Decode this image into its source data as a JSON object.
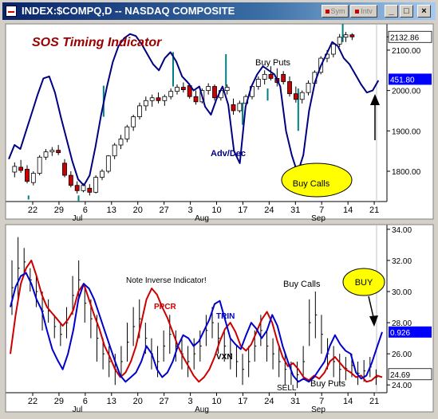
{
  "window": {
    "title": "INDEX:$COMPQ,D -- NASDAQ COMPOSITE",
    "tag_buttons": [
      "Sym",
      "Intv"
    ],
    "window_buttons": [
      "_",
      "□",
      "×"
    ]
  },
  "colors": {
    "plot_bg": "#ffffff",
    "price_bar": "#000000",
    "candle_up": "#ffffff",
    "candle_down": "#cc0000",
    "adv_dec": "#000080",
    "cycle_marker": "#008080",
    "trin": "#0000cc",
    "pcr": "#cc0000",
    "vxn_bar": "#000000",
    "callout": "#ffff00",
    "title_text": "#990000",
    "axis_label_blue": "#0000ff",
    "axis_label_black": "#000000"
  },
  "chart_data": [
    {
      "type": "candlestick",
      "panel": "upper",
      "title": "SOS Timing Indicator",
      "y_ticks": [
        1800,
        1900,
        2000,
        2100
      ],
      "y_range": [
        1725,
        2165
      ],
      "x_date_labels": [
        "22",
        "29",
        "6",
        "13",
        "20",
        "27",
        "3",
        "10",
        "17",
        "24",
        "31",
        "7",
        "14",
        "21"
      ],
      "x_month_labels": [
        "Jul",
        "Aug",
        "Sep"
      ],
      "current_price_label": "2132.86",
      "current_price": 2132.86,
      "adv_dec_current_label": "451.80",
      "adv_dec_current_y": 2028,
      "ohlc": [
        {
          "o": 1798,
          "h": 1822,
          "l": 1785,
          "c": 1812
        },
        {
          "o": 1810,
          "h": 1828,
          "l": 1796,
          "c": 1802
        },
        {
          "o": 1805,
          "h": 1815,
          "l": 1770,
          "c": 1775
        },
        {
          "o": 1772,
          "h": 1800,
          "l": 1765,
          "c": 1795
        },
        {
          "o": 1795,
          "h": 1840,
          "l": 1790,
          "c": 1835
        },
        {
          "o": 1835,
          "h": 1855,
          "l": 1828,
          "c": 1848
        },
        {
          "o": 1848,
          "h": 1860,
          "l": 1838,
          "c": 1852
        },
        {
          "o": 1852,
          "h": 1865,
          "l": 1840,
          "c": 1846
        },
        {
          "o": 1820,
          "h": 1830,
          "l": 1785,
          "c": 1790
        },
        {
          "o": 1790,
          "h": 1800,
          "l": 1760,
          "c": 1765
        },
        {
          "o": 1765,
          "h": 1775,
          "l": 1745,
          "c": 1752
        },
        {
          "o": 1752,
          "h": 1770,
          "l": 1748,
          "c": 1765
        },
        {
          "o": 1758,
          "h": 1768,
          "l": 1740,
          "c": 1748
        },
        {
          "o": 1748,
          "h": 1790,
          "l": 1745,
          "c": 1785
        },
        {
          "o": 1785,
          "h": 1805,
          "l": 1778,
          "c": 1800
        },
        {
          "o": 1800,
          "h": 1840,
          "l": 1795,
          "c": 1838
        },
        {
          "o": 1838,
          "h": 1870,
          "l": 1830,
          "c": 1865
        },
        {
          "o": 1865,
          "h": 1890,
          "l": 1855,
          "c": 1880
        },
        {
          "o": 1880,
          "h": 1915,
          "l": 1872,
          "c": 1910
        },
        {
          "o": 1910,
          "h": 1940,
          "l": 1900,
          "c": 1935
        },
        {
          "o": 1935,
          "h": 1970,
          "l": 1928,
          "c": 1962
        },
        {
          "o": 1962,
          "h": 1985,
          "l": 1950,
          "c": 1975
        },
        {
          "o": 1975,
          "h": 1990,
          "l": 1960,
          "c": 1982
        },
        {
          "o": 1982,
          "h": 1995,
          "l": 1968,
          "c": 1975
        },
        {
          "o": 1975,
          "h": 1990,
          "l": 1962,
          "c": 1985
        },
        {
          "o": 1985,
          "h": 2005,
          "l": 1978,
          "c": 1998
        },
        {
          "o": 1998,
          "h": 2015,
          "l": 1990,
          "c": 2008
        },
        {
          "o": 2008,
          "h": 2020,
          "l": 1995,
          "c": 2002
        },
        {
          "o": 2012,
          "h": 2018,
          "l": 1980,
          "c": 1985
        },
        {
          "o": 1985,
          "h": 2000,
          "l": 1965,
          "c": 1972
        },
        {
          "o": 1972,
          "h": 2005,
          "l": 1968,
          "c": 2000
        },
        {
          "o": 2000,
          "h": 2018,
          "l": 1990,
          "c": 2010
        },
        {
          "o": 2010,
          "h": 2015,
          "l": 1975,
          "c": 1982
        },
        {
          "o": 1982,
          "h": 2005,
          "l": 1975,
          "c": 2000
        },
        {
          "o": 2000,
          "h": 2015,
          "l": 1990,
          "c": 2008
        },
        {
          "o": 1965,
          "h": 1980,
          "l": 1940,
          "c": 1950
        },
        {
          "o": 1950,
          "h": 1975,
          "l": 1945,
          "c": 1968
        },
        {
          "o": 1968,
          "h": 1990,
          "l": 1960,
          "c": 1985
        },
        {
          "o": 1985,
          "h": 2015,
          "l": 1978,
          "c": 2010
        },
        {
          "o": 2010,
          "h": 2035,
          "l": 2002,
          "c": 2028
        },
        {
          "o": 2028,
          "h": 2050,
          "l": 2015,
          "c": 2040
        },
        {
          "o": 2040,
          "h": 2060,
          "l": 2025,
          "c": 2030
        },
        {
          "o": 2030,
          "h": 2055,
          "l": 2010,
          "c": 2020
        },
        {
          "o": 2040,
          "h": 2048,
          "l": 2015,
          "c": 2022
        },
        {
          "o": 2022,
          "h": 2035,
          "l": 1985,
          "c": 1992
        },
        {
          "o": 1992,
          "h": 2010,
          "l": 1970,
          "c": 1978
        },
        {
          "o": 1978,
          "h": 2000,
          "l": 1968,
          "c": 1995
        },
        {
          "o": 1995,
          "h": 2025,
          "l": 1988,
          "c": 2018
        },
        {
          "o": 2018,
          "h": 2050,
          "l": 2012,
          "c": 2045
        },
        {
          "o": 2045,
          "h": 2085,
          "l": 2040,
          "c": 2080
        },
        {
          "o": 2080,
          "h": 2100,
          "l": 2070,
          "c": 2090
        },
        {
          "o": 2090,
          "h": 2120,
          "l": 2082,
          "c": 2115
        },
        {
          "o": 2115,
          "h": 2140,
          "l": 2108,
          "c": 2132
        },
        {
          "o": 2132,
          "h": 2145,
          "l": 2120,
          "c": 2138
        },
        {
          "o": 2138,
          "h": 2142,
          "l": 2125,
          "c": 2132.86
        }
      ],
      "adv_dec_series": [
        1830,
        1865,
        1855,
        1900,
        1945,
        1990,
        2030,
        2035,
        1995,
        1935,
        1880,
        1825,
        1780,
        1765,
        1790,
        1860,
        1940,
        2010,
        2070,
        2110,
        2130,
        2140,
        2135,
        2115,
        2090,
        2065,
        2050,
        2080,
        2095,
        2072,
        2035,
        2020,
        2000,
        2010,
        1960,
        1940,
        1980,
        2010,
        1965,
        1850,
        1820,
        1960,
        2010,
        2040,
        2060,
        2050,
        2040,
        2010,
        1900,
        1840,
        1795,
        1840,
        1950,
        2020,
        2060,
        2090,
        2120,
        2110,
        2080,
        2065,
        2040,
        2015,
        1995,
        2000,
        2025
      ],
      "cycle_markers": [
        {
          "i": 2.5,
          "from": 1740,
          "to": 1730
        },
        {
          "i": 11.5,
          "from": 1740,
          "to": 1725
        },
        {
          "i": 16,
          "from": 1935,
          "to": 2012
        },
        {
          "i": 28.5,
          "from": 2010,
          "to": 2095
        },
        {
          "i": 38,
          "from": 2010,
          "to": 2090
        },
        {
          "i": 41,
          "from": 1915,
          "to": 1970
        },
        {
          "i": 45.5,
          "from": 1975,
          "to": 2005
        },
        {
          "i": 51,
          "from": 1900,
          "to": 2005
        },
        {
          "i": 59,
          "from": 2120,
          "to": 2165
        }
      ],
      "annotations": [
        {
          "text": "Buy Puts",
          "x": 42,
          "y": 2080
        },
        {
          "text": "Adv/Dec",
          "x": 34,
          "y": 1832
        },
        {
          "text": "Buy Calls",
          "x": 47,
          "y": 1755,
          "callout": true
        },
        {
          "text": "",
          "x": 59,
          "y": 1905,
          "arrow_to": 2000
        }
      ]
    },
    {
      "type": "line",
      "panel": "lower",
      "y_ticks": [
        24,
        26,
        28,
        30,
        32,
        34
      ],
      "y_range": [
        23.5,
        34.3
      ],
      "x_date_labels": [
        "22",
        "29",
        "6",
        "13",
        "20",
        "27",
        "3",
        "10",
        "17",
        "24",
        "31",
        "7",
        "14",
        "21"
      ],
      "x_month_labels": [
        "Jul",
        "Aug",
        "Sep"
      ],
      "current_trin_label": "0.926",
      "current_trin_y": 27.4,
      "current_vxn_label": "24.69",
      "current_vxn": 24.69,
      "series": [
        {
          "name": "TRIN",
          "values": [
            29.0,
            30.3,
            31.0,
            31.2,
            30.5,
            29.5,
            28.8,
            27.5,
            26.3,
            25.6,
            25.0,
            26.0,
            27.5,
            29.5,
            30.5,
            30.2,
            29.5,
            28.5,
            27.5,
            26.5,
            25.5,
            24.6,
            24.2,
            24.5,
            24.8,
            25.5,
            26.5,
            26.0,
            25.0,
            24.5,
            24.8,
            25.5,
            26.5,
            27.2,
            27.0,
            26.5,
            26.8,
            27.5,
            28.2,
            29.2,
            29.4,
            28.2,
            27.0,
            26.6,
            26.3,
            27.2,
            28.0,
            27.6,
            27.0,
            27.5,
            28.5,
            27.8,
            26.5,
            25.5,
            24.6,
            24.2,
            24.4,
            24.2,
            24.5,
            25.0,
            25.5,
            26.5,
            27.2,
            26.6,
            26.2,
            26.0,
            24.8,
            24.4,
            24.6,
            25.4,
            26.4,
            27.4
          ]
        },
        {
          "name": "PCR",
          "values": [
            26.0,
            28.5,
            30.5,
            31.5,
            32.0,
            31.0,
            29.8,
            29.0,
            28.6,
            28.2,
            27.8,
            28.2,
            28.8,
            30.0,
            30.5,
            29.5,
            28.5,
            27.6,
            26.5,
            25.8,
            25.0,
            24.5,
            24.8,
            25.5,
            26.5,
            28.0,
            29.5,
            30.2,
            29.8,
            29.0,
            28.3,
            27.4,
            26.5,
            25.8,
            25.2,
            24.6,
            24.2,
            24.5,
            25.0,
            25.8,
            26.8,
            27.6,
            28.0,
            27.4,
            26.5,
            26.2,
            26.6,
            27.4,
            28.2,
            28.7,
            28.0,
            26.8,
            25.8,
            25.2,
            25.4,
            25.0,
            24.5,
            24.3,
            24.6,
            24.4,
            24.8,
            25.5,
            25.8,
            25.4,
            25.0,
            24.8,
            24.5,
            24.6,
            24.2,
            24.3,
            24.6,
            24.5
          ]
        },
        {
          "name": "VXN",
          "bars": [
            [
              28.5,
              32.0
            ],
            [
              29.5,
              33.5
            ],
            [
              31.0,
              32.8
            ],
            [
              30.0,
              31.5
            ],
            [
              29.0,
              31.0
            ],
            [
              27.5,
              30.0
            ],
            [
              28.0,
              29.5
            ],
            [
              27.0,
              28.5
            ],
            [
              26.5,
              28.0
            ],
            [
              27.0,
              29.0
            ],
            [
              28.5,
              31.0
            ],
            [
              29.5,
              32.0
            ],
            [
              28.0,
              30.5
            ],
            [
              27.0,
              29.5
            ],
            [
              25.5,
              28.5
            ],
            [
              25.0,
              27.0
            ],
            [
              24.5,
              26.5
            ],
            [
              24.0,
              26.0
            ],
            [
              24.5,
              26.5
            ],
            [
              25.5,
              28.0
            ],
            [
              26.5,
              29.0
            ],
            [
              27.0,
              29.5
            ],
            [
              26.0,
              28.0
            ],
            [
              25.0,
              27.0
            ],
            [
              24.5,
              26.5
            ],
            [
              25.5,
              27.5
            ],
            [
              26.0,
              28.5
            ],
            [
              25.5,
              27.5
            ],
            [
              25.0,
              27.0
            ],
            [
              24.5,
              26.5
            ],
            [
              25.0,
              27.0
            ],
            [
              25.5,
              27.5
            ],
            [
              26.5,
              28.5
            ],
            [
              27.0,
              29.0
            ],
            [
              26.0,
              28.0
            ],
            [
              25.5,
              27.5
            ],
            [
              25.0,
              27.0
            ],
            [
              24.5,
              26.5
            ],
            [
              24.0,
              26.0
            ],
            [
              24.5,
              26.5
            ],
            [
              25.5,
              27.5
            ],
            [
              26.5,
              28.5
            ],
            [
              25.5,
              27.5
            ],
            [
              25.0,
              27.0
            ],
            [
              24.5,
              26.5
            ],
            [
              24.0,
              26.0
            ],
            [
              24.0,
              25.5
            ],
            [
              23.8,
              25.5
            ],
            [
              24.5,
              26.5
            ],
            [
              26.5,
              29.5
            ],
            [
              27.0,
              30.0
            ],
            [
              26.0,
              28.5
            ],
            [
              25.0,
              27.0
            ],
            [
              24.5,
              26.5
            ],
            [
              24.0,
              26.0
            ],
            [
              24.3,
              25.8
            ],
            [
              24.5,
              26.0
            ],
            [
              24.0,
              25.5
            ],
            [
              24.2,
              25.6
            ],
            [
              24.5,
              25.8
            ],
            [
              24.0,
              25.0
            ]
          ]
        }
      ],
      "annotations": [
        {
          "text": "Note Inverse Indicator!",
          "x": 27,
          "y": 30.7
        },
        {
          "text": "Buy Calls",
          "x": 56,
          "y": 30.5
        },
        {
          "text": "PPCR",
          "x": 30.5,
          "y": 29.6
        },
        {
          "text": "TRIN",
          "x": 43.5,
          "y": 28.5
        },
        {
          "text": "VXN",
          "x": 43.5,
          "y": 26.0
        },
        {
          "text": "SELL",
          "x": 55.5,
          "y": 23.85
        },
        {
          "text": "Buy Puts",
          "x": 62.5,
          "y": 24.05
        },
        {
          "text": "BUY",
          "x": 69,
          "y": 30.7,
          "callout": true,
          "arrow_to": 27.6
        }
      ]
    }
  ]
}
